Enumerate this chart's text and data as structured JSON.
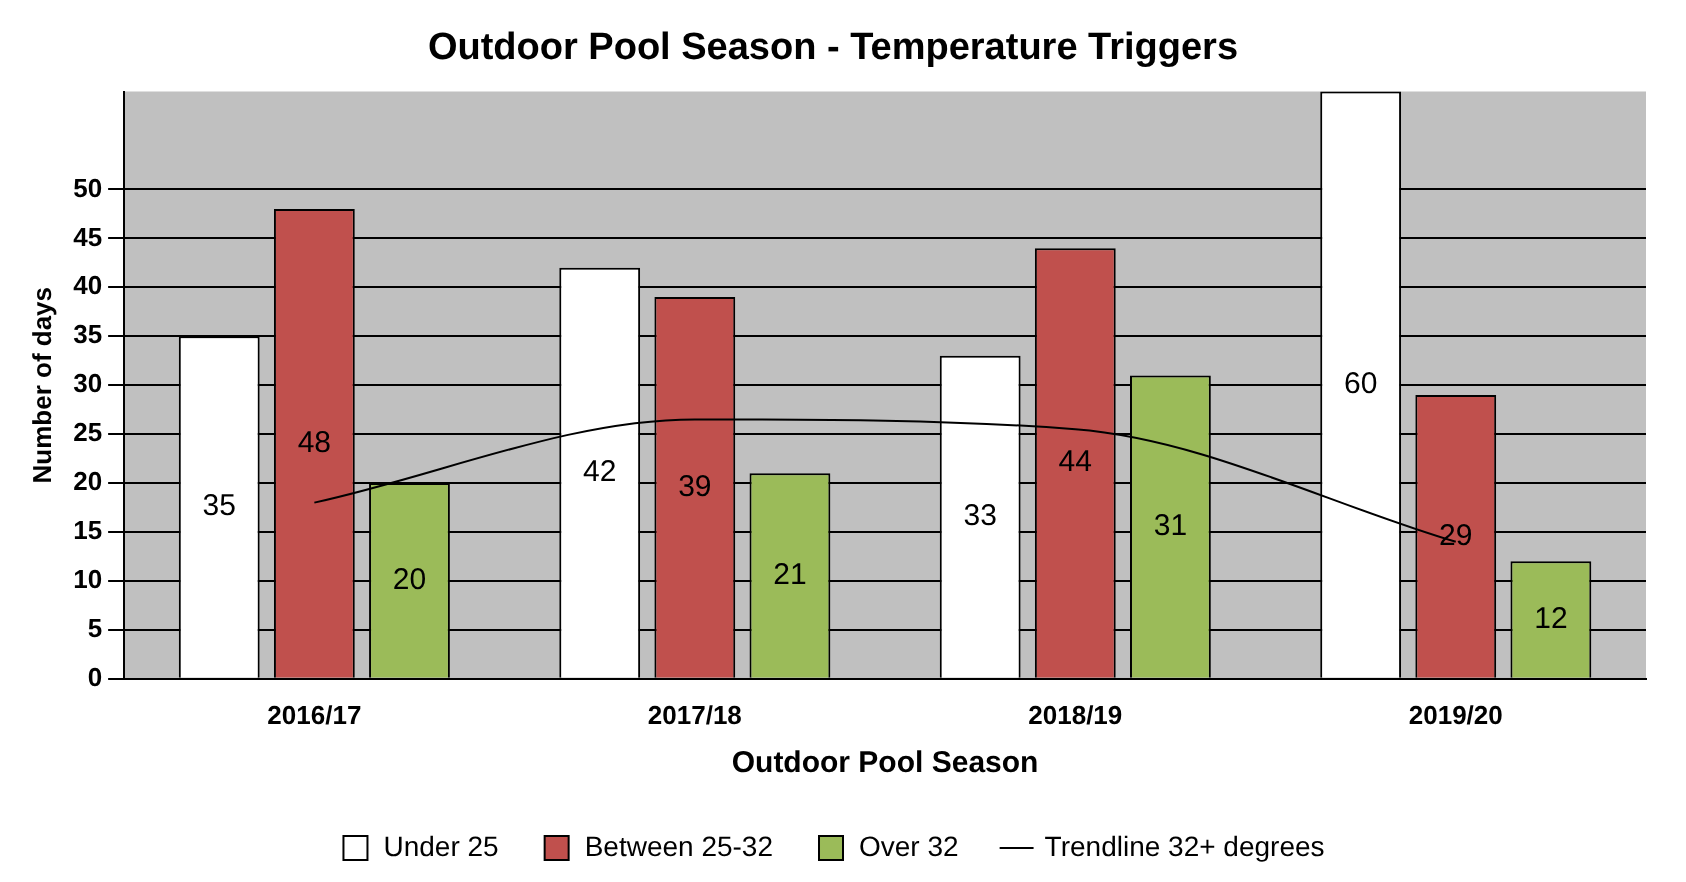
{
  "chart_data": {
    "type": "bar",
    "title": "Outdoor Pool Season - Temperature Triggers",
    "xlabel": "Outdoor Pool Season",
    "ylabel": "Number of days",
    "categories": [
      "2016/17",
      "2017/18",
      "2018/19",
      "2019/20"
    ],
    "series": [
      {
        "name": "Under 25",
        "color": "#ffffff",
        "values": [
          35,
          42,
          33,
          60
        ],
        "value_labels": [
          "35",
          "42",
          "33",
          "60"
        ]
      },
      {
        "name": "Between 25-32",
        "color": "#c0504d",
        "values": [
          48,
          39,
          44,
          29
        ],
        "value_labels": [
          "48",
          "39",
          "44",
          "29"
        ]
      },
      {
        "name": "Over 32",
        "color": "#9bbb59",
        "values": [
          20,
          21,
          31,
          12
        ],
        "value_labels": [
          "20",
          "21",
          "31",
          "12"
        ]
      },
      {
        "name": "Trendline 32+ degrees",
        "type": "line",
        "color": "#000000",
        "values": [
          18,
          26.5,
          25.5,
          14
        ]
      }
    ],
    "ylim": [
      0,
      60
    ],
    "yticks": [
      0,
      5,
      10,
      15,
      20,
      25,
      30,
      35,
      40,
      45,
      50
    ],
    "grid": "y",
    "legend": "bottom"
  }
}
